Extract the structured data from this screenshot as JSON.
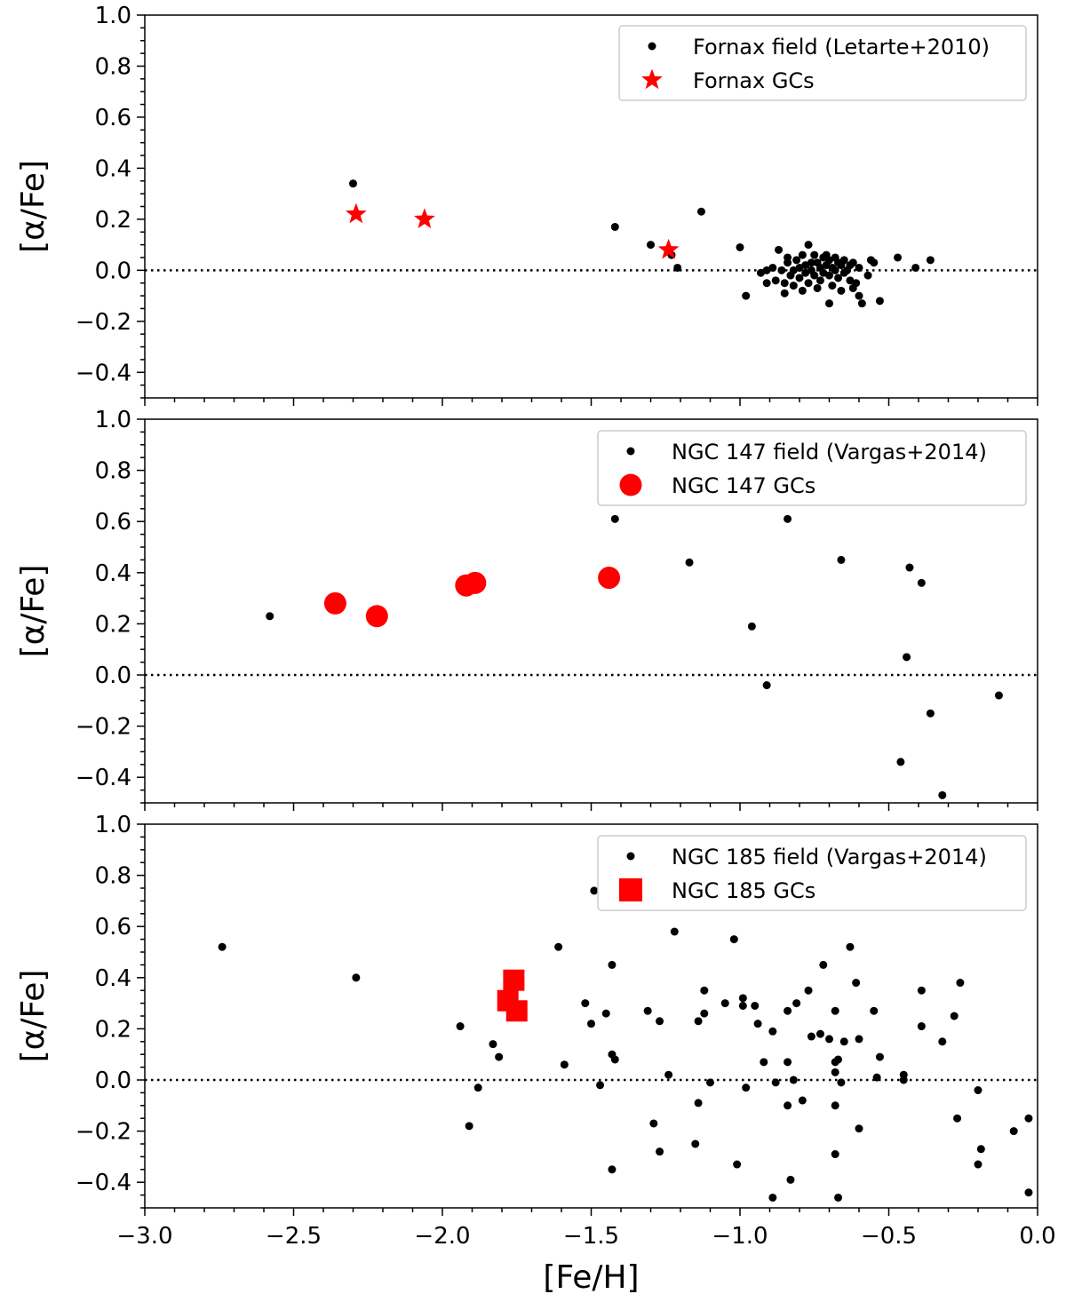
{
  "chart_data": [
    {
      "type": "scatter",
      "xlabel": "",
      "ylabel": "[α/Fe]",
      "xlim": [
        -3.0,
        0.0
      ],
      "ylim": [
        -0.5,
        1.0
      ],
      "yticks": [
        "1.0",
        "0.8",
        "0.6",
        "0.4",
        "0.2",
        "0.0",
        "−0.2",
        "−0.4"
      ],
      "legend_position": "top-right",
      "reference_line": 0.0,
      "series": [
        {
          "name": "Fornax field (Letarte+2010)",
          "marker": "dot",
          "color": "#000000",
          "points": [
            [
              -2.3,
              0.34
            ],
            [
              -1.42,
              0.17
            ],
            [
              -1.3,
              0.1
            ],
            [
              -1.13,
              0.23
            ],
            [
              -1.0,
              0.09
            ],
            [
              -1.23,
              0.06
            ],
            [
              -1.21,
              0.01
            ],
            [
              -0.98,
              -0.1
            ],
            [
              -0.93,
              -0.01
            ],
            [
              -0.91,
              0.0
            ],
            [
              -0.91,
              -0.05
            ],
            [
              -0.89,
              0.01
            ],
            [
              -0.88,
              -0.04
            ],
            [
              -0.87,
              0.08
            ],
            [
              -0.86,
              0.0
            ],
            [
              -0.85,
              -0.05
            ],
            [
              -0.85,
              -0.09
            ],
            [
              -0.84,
              0.05
            ],
            [
              -0.84,
              0.03
            ],
            [
              -0.83,
              -0.02
            ],
            [
              -0.82,
              0.0
            ],
            [
              -0.82,
              -0.06
            ],
            [
              -0.81,
              0.04
            ],
            [
              -0.8,
              -0.03
            ],
            [
              -0.8,
              0.01
            ],
            [
              -0.79,
              -0.08
            ],
            [
              -0.79,
              0.06
            ],
            [
              -0.78,
              0.02
            ],
            [
              -0.78,
              -0.01
            ],
            [
              -0.77,
              0.1
            ],
            [
              -0.77,
              -0.05
            ],
            [
              -0.76,
              0.03
            ],
            [
              -0.76,
              0.0
            ],
            [
              -0.75,
              -0.02
            ],
            [
              -0.75,
              0.06
            ],
            [
              -0.74,
              -0.07
            ],
            [
              -0.74,
              0.03
            ],
            [
              -0.73,
              0.01
            ],
            [
              -0.73,
              -0.04
            ],
            [
              -0.72,
              0.05
            ],
            [
              -0.72,
              -0.01
            ],
            [
              -0.71,
              0.02
            ],
            [
              -0.71,
              0.06
            ],
            [
              -0.7,
              -0.02
            ],
            [
              -0.7,
              0.04
            ],
            [
              -0.7,
              -0.13
            ],
            [
              -0.69,
              0.01
            ],
            [
              -0.69,
              -0.06
            ],
            [
              -0.68,
              0.05
            ],
            [
              -0.68,
              0.0
            ],
            [
              -0.67,
              -0.03
            ],
            [
              -0.67,
              0.03
            ],
            [
              -0.66,
              -0.08
            ],
            [
              -0.66,
              0.02
            ],
            [
              -0.65,
              0.04
            ],
            [
              -0.65,
              -0.01
            ],
            [
              -0.64,
              0.0
            ],
            [
              -0.63,
              -0.04
            ],
            [
              -0.63,
              0.02
            ],
            [
              -0.62,
              -0.07
            ],
            [
              -0.62,
              0.03
            ],
            [
              -0.61,
              -0.05
            ],
            [
              -0.6,
              -0.1
            ],
            [
              -0.6,
              0.01
            ],
            [
              -0.59,
              -0.13
            ],
            [
              -0.57,
              -0.02
            ],
            [
              -0.56,
              0.04
            ],
            [
              -0.55,
              0.03
            ],
            [
              -0.53,
              -0.12
            ],
            [
              -0.47,
              0.05
            ],
            [
              -0.41,
              0.01
            ],
            [
              -0.36,
              0.04
            ]
          ]
        },
        {
          "name": "Fornax GCs",
          "marker": "star",
          "color": "#ff0000",
          "points": [
            [
              -2.29,
              0.22
            ],
            [
              -2.06,
              0.2
            ],
            [
              -1.24,
              0.08
            ]
          ]
        }
      ]
    },
    {
      "type": "scatter",
      "xlabel": "",
      "ylabel": "[α/Fe]",
      "xlim": [
        -3.0,
        0.0
      ],
      "ylim": [
        -0.5,
        1.0
      ],
      "yticks": [
        "1.0",
        "0.8",
        "0.6",
        "0.4",
        "0.2",
        "0.0",
        "−0.2",
        "−0.4"
      ],
      "legend_position": "top-right",
      "reference_line": 0.0,
      "series": [
        {
          "name": "NGC 147 field (Vargas+2014)",
          "marker": "dot",
          "color": "#000000",
          "points": [
            [
              -2.58,
              0.23
            ],
            [
              -1.42,
              0.61
            ],
            [
              -1.17,
              0.44
            ],
            [
              -0.96,
              0.19
            ],
            [
              -0.91,
              -0.04
            ],
            [
              -0.84,
              0.61
            ],
            [
              -0.66,
              0.45
            ],
            [
              -0.46,
              -0.34
            ],
            [
              -0.44,
              0.07
            ],
            [
              -0.43,
              0.42
            ],
            [
              -0.39,
              0.36
            ],
            [
              -0.36,
              -0.15
            ],
            [
              -0.32,
              -0.47
            ],
            [
              -0.13,
              -0.08
            ]
          ]
        },
        {
          "name": "NGC 147 GCs",
          "marker": "circle",
          "color": "#ff0000",
          "points": [
            [
              -2.36,
              0.28
            ],
            [
              -2.22,
              0.23
            ],
            [
              -1.92,
              0.35
            ],
            [
              -1.89,
              0.36
            ],
            [
              -1.44,
              0.38
            ]
          ]
        }
      ]
    },
    {
      "type": "scatter",
      "xlabel": "[Fe/H]",
      "ylabel": "[α/Fe]",
      "xlim": [
        -3.0,
        0.0
      ],
      "ylim": [
        -0.5,
        1.0
      ],
      "xticks": [
        "−3.0",
        "−2.5",
        "−2.0",
        "−1.5",
        "−1.0",
        "−0.5",
        "0.0"
      ],
      "yticks": [
        "1.0",
        "0.8",
        "0.6",
        "0.4",
        "0.2",
        "0.0",
        "−0.2",
        "−0.4"
      ],
      "legend_position": "top-right",
      "reference_line": 0.0,
      "series": [
        {
          "name": "NGC 185 field (Vargas+2014)",
          "marker": "dot",
          "color": "#000000",
          "points": [
            [
              -2.74,
              0.52
            ],
            [
              -2.29,
              0.4
            ],
            [
              -1.94,
              0.21
            ],
            [
              -1.91,
              -0.18
            ],
            [
              -1.88,
              -0.03
            ],
            [
              -1.83,
              0.14
            ],
            [
              -1.81,
              0.09
            ],
            [
              -1.61,
              0.52
            ],
            [
              -1.59,
              0.06
            ],
            [
              -1.52,
              0.3
            ],
            [
              -1.5,
              0.22
            ],
            [
              -1.49,
              0.74
            ],
            [
              -1.47,
              -0.02
            ],
            [
              -1.45,
              0.26
            ],
            [
              -1.43,
              0.45
            ],
            [
              -1.43,
              0.1
            ],
            [
              -1.42,
              0.08
            ],
            [
              -1.43,
              -0.35
            ],
            [
              -1.31,
              0.27
            ],
            [
              -1.29,
              -0.17
            ],
            [
              -1.27,
              0.23
            ],
            [
              -1.27,
              -0.28
            ],
            [
              -1.24,
              0.02
            ],
            [
              -1.22,
              0.58
            ],
            [
              -1.15,
              -0.25
            ],
            [
              -1.14,
              0.23
            ],
            [
              -1.14,
              -0.09
            ],
            [
              -1.12,
              0.35
            ],
            [
              -1.12,
              0.26
            ],
            [
              -1.1,
              -0.01
            ],
            [
              -1.05,
              0.3
            ],
            [
              -1.02,
              0.55
            ],
            [
              -1.01,
              -0.33
            ],
            [
              -0.99,
              0.32
            ],
            [
              -0.99,
              0.29
            ],
            [
              -0.98,
              -0.03
            ],
            [
              -0.95,
              0.29
            ],
            [
              -0.94,
              0.22
            ],
            [
              -0.92,
              0.07
            ],
            [
              -0.89,
              0.19
            ],
            [
              -0.89,
              -0.46
            ],
            [
              -0.88,
              -0.01
            ],
            [
              -0.84,
              0.27
            ],
            [
              -0.84,
              0.07
            ],
            [
              -0.84,
              -0.1
            ],
            [
              -0.83,
              -0.39
            ],
            [
              -0.82,
              0.0
            ],
            [
              -0.81,
              0.3
            ],
            [
              -0.79,
              -0.08
            ],
            [
              -0.77,
              0.35
            ],
            [
              -0.76,
              0.17
            ],
            [
              -0.73,
              0.18
            ],
            [
              -0.72,
              0.45
            ],
            [
              -0.7,
              0.16
            ],
            [
              -0.68,
              0.27
            ],
            [
              -0.68,
              0.07
            ],
            [
              -0.68,
              0.03
            ],
            [
              -0.68,
              -0.1
            ],
            [
              -0.68,
              -0.29
            ],
            [
              -0.67,
              -0.46
            ],
            [
              -0.67,
              0.08
            ],
            [
              -0.66,
              -0.01
            ],
            [
              -0.65,
              0.15
            ],
            [
              -0.63,
              0.52
            ],
            [
              -0.61,
              0.38
            ],
            [
              -0.6,
              0.16
            ],
            [
              -0.6,
              -0.19
            ],
            [
              -0.55,
              0.27
            ],
            [
              -0.54,
              0.01
            ],
            [
              -0.53,
              0.09
            ],
            [
              -0.45,
              0.02
            ],
            [
              -0.45,
              0.0
            ],
            [
              -0.39,
              0.35
            ],
            [
              -0.39,
              0.21
            ],
            [
              -0.32,
              0.15
            ],
            [
              -0.28,
              0.25
            ],
            [
              -0.26,
              0.38
            ],
            [
              -0.27,
              -0.15
            ],
            [
              -0.2,
              -0.04
            ],
            [
              -0.2,
              -0.33
            ],
            [
              -0.19,
              -0.27
            ],
            [
              -0.08,
              -0.2
            ],
            [
              -0.03,
              -0.15
            ],
            [
              -0.03,
              -0.44
            ]
          ]
        },
        {
          "name": "NGC 185 GCs",
          "marker": "square",
          "color": "#ff0000",
          "points": [
            [
              -1.76,
              0.39
            ],
            [
              -1.78,
              0.31
            ],
            [
              -1.75,
              0.27
            ]
          ]
        }
      ]
    }
  ]
}
